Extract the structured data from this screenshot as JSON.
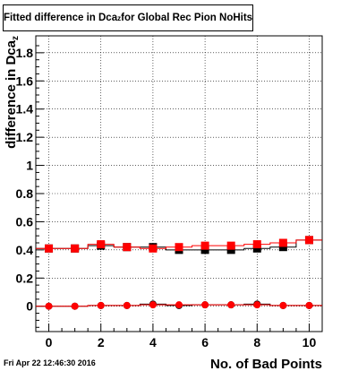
{
  "title": {
    "main": "Fitted difference in Dca",
    "subscript": "z",
    "suffix": " for Global Rec Pion NoHits"
  },
  "footer": {
    "timestamp": "Fri Apr 22 12:46:30 2016"
  },
  "chart_data": {
    "type": "scatter",
    "title": "Fitted difference in Dca_z for Global Rec Pion NoHits",
    "xlabel": "No. of Bad Points",
    "ylabel": "difference in Dca",
    "ylabel_subscript": "z",
    "xlim": [
      -0.5,
      10.5
    ],
    "ylim": [
      -0.18,
      1.92
    ],
    "x_ticks": [
      0,
      2,
      4,
      6,
      8,
      10
    ],
    "x_tick_labels": [
      "0",
      "2",
      "4",
      "6",
      "8",
      "10"
    ],
    "y_ticks": [
      0,
      0.2,
      0.4,
      0.6,
      0.8,
      1.0,
      1.2,
      1.4,
      1.6,
      1.8
    ],
    "y_tick_labels": [
      "0",
      "0.2",
      "0.4",
      "0.6",
      "0.8",
      "1",
      "1.2",
      "1.4",
      "1.6",
      "1.8"
    ],
    "grid": true,
    "series": [
      {
        "marker": "square",
        "color": "#000000",
        "x": [
          0,
          1,
          2,
          3,
          4,
          5,
          6,
          7,
          8,
          9,
          10
        ],
        "y": [
          0.41,
          0.41,
          0.43,
          0.42,
          0.42,
          0.4,
          0.4,
          0.4,
          0.41,
          0.42,
          0.47
        ]
      },
      {
        "marker": "square",
        "color": "#ff0000",
        "x": [
          0,
          1,
          2,
          3,
          4,
          5,
          6,
          7,
          8,
          9,
          10
        ],
        "y": [
          0.41,
          0.41,
          0.44,
          0.42,
          0.41,
          0.42,
          0.43,
          0.43,
          0.44,
          0.45,
          0.47
        ]
      },
      {
        "marker": "circle",
        "color": "#000000",
        "x": [
          0,
          1,
          2,
          3,
          4,
          5,
          6,
          7,
          8,
          9,
          10
        ],
        "y": [
          0.0,
          0.0,
          0.005,
          0.005,
          0.015,
          0.005,
          0.01,
          0.01,
          0.015,
          0.005,
          0.005
        ]
      },
      {
        "marker": "circle",
        "color": "#ff0000",
        "x": [
          0,
          1,
          2,
          3,
          4,
          5,
          6,
          7,
          8,
          9,
          10
        ],
        "y": [
          0.0,
          0.0,
          0.005,
          0.005,
          0.01,
          0.01,
          0.01,
          0.01,
          0.01,
          0.005,
          0.005
        ]
      }
    ]
  }
}
